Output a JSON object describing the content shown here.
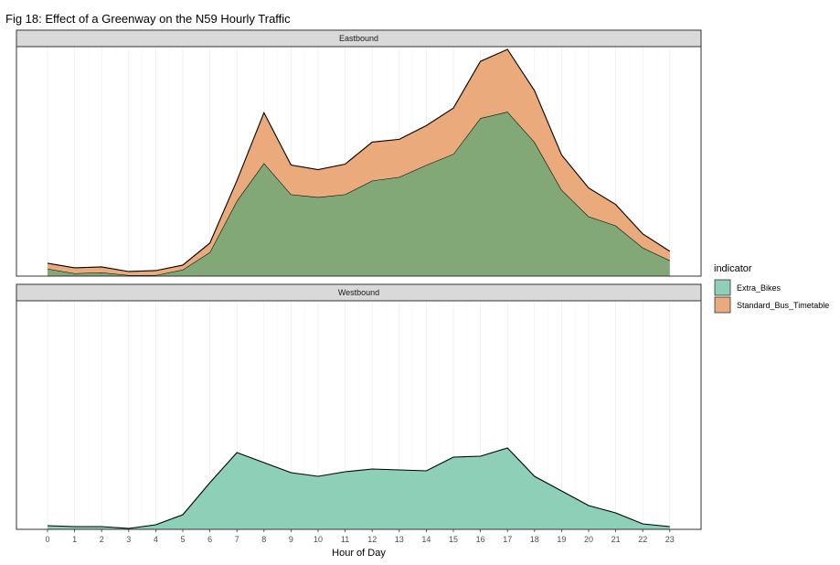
{
  "chart_data": {
    "type": "area",
    "title": "Fig 18: Effect of a Greenway on the N59 Hourly Traffic",
    "xlabel": "Hour of Day",
    "ylabel": "",
    "x": [
      0,
      1,
      2,
      3,
      4,
      5,
      6,
      7,
      8,
      9,
      10,
      11,
      12,
      13,
      14,
      15,
      16,
      17,
      18,
      19,
      20,
      21,
      22,
      23
    ],
    "x_ticks": [
      "0",
      "1",
      "2",
      "3",
      "4",
      "5",
      "6",
      "7",
      "8",
      "9",
      "10",
      "11",
      "12",
      "13",
      "14",
      "15",
      "16",
      "17",
      "18",
      "19",
      "20",
      "21",
      "22",
      "23"
    ],
    "stacked": true,
    "grid": true,
    "legend": {
      "title": "indicator",
      "position": "right",
      "entries": [
        "Extra_Bikes",
        "Standard_Bus_Timetable"
      ]
    },
    "colors": {
      "Extra_Bikes": "#66c2a5",
      "Standard_Bus_Timetable": "#fc8d62"
    },
    "panels": [
      {
        "label": "Eastbound",
        "ylim": [
          0,
          250
        ],
        "series": [
          {
            "name": "Extra_Bikes",
            "values": [
              8,
              3,
              4,
              1,
              1,
              7,
              26,
              82,
              123,
              89,
              86,
              89,
              104,
              108,
              121,
              133,
              172,
              179,
              146,
              94,
              65,
              55,
              31,
              17
            ]
          },
          {
            "name": "Standard_Bus_Timetable",
            "values": [
              6,
              6,
              6,
              4,
              5,
              5,
              10,
              22,
              55,
              32,
              30,
              33,
              42,
              41,
              43,
              50,
              62,
              68,
              56,
              38,
              31,
              23,
              15,
              10
            ]
          }
        ]
      },
      {
        "label": "Westbound",
        "ylim": [
          0,
          250
        ],
        "series": [
          {
            "name": "Extra_Bikes",
            "values": [
              4,
              3,
              3,
              1,
              5,
              16,
              51,
              84,
              73,
              62,
              58,
              63,
              66,
              65,
              64,
              79,
              80,
              89,
              58,
              42,
              26,
              18,
              6,
              3
            ]
          }
        ]
      }
    ]
  }
}
